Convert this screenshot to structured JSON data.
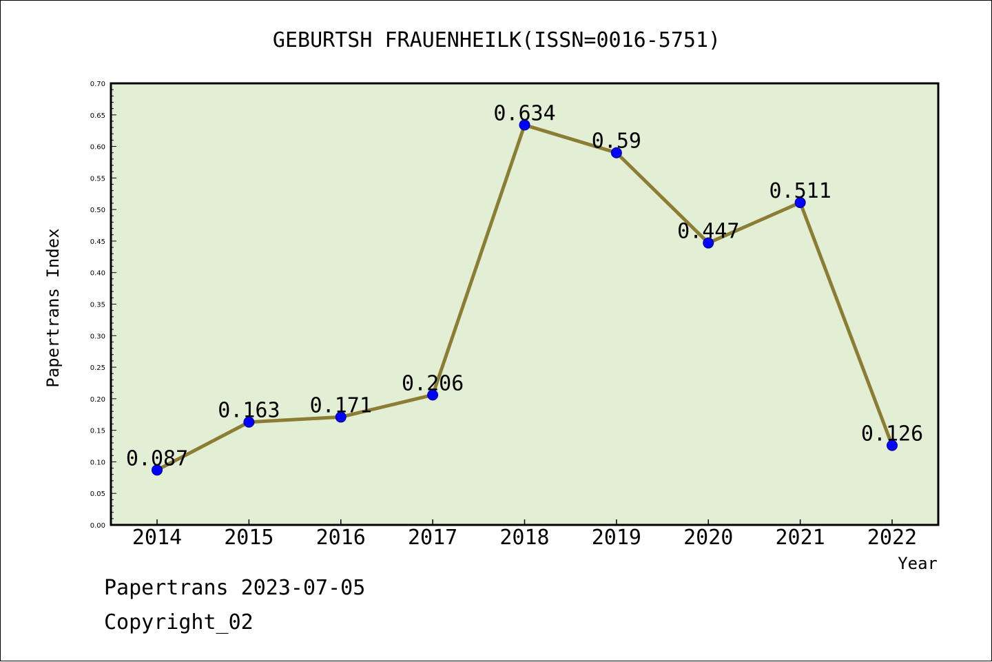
{
  "chart_data": {
    "type": "line",
    "title": "GEBURTSH FRAUENHEILK(ISSN=0016-5751)",
    "xlabel": "Year",
    "ylabel": "Papertrans Index",
    "categories": [
      "2014",
      "2015",
      "2016",
      "2017",
      "2018",
      "2019",
      "2020",
      "2021",
      "2022"
    ],
    "values": [
      0.087,
      0.163,
      0.171,
      0.206,
      0.634,
      0.59,
      0.447,
      0.511,
      0.126
    ],
    "data_labels": [
      "0.087",
      "0.163",
      "0.171",
      "0.206",
      "0.634",
      "0.59",
      "0.447",
      "0.511",
      "0.126"
    ],
    "ylim": [
      0,
      0.7
    ],
    "yticks": [
      "0.00",
      "0.05",
      "0.10",
      "0.15",
      "0.20",
      "0.25",
      "0.30",
      "0.35",
      "0.40",
      "0.45",
      "0.50",
      "0.55",
      "0.60",
      "0.65",
      "0.70"
    ],
    "grid": false,
    "colors": {
      "plot_background": "#e2efd5",
      "line": "#8c7d34",
      "marker": "#0000ff",
      "marker_edge": "#00008b"
    }
  },
  "footer": {
    "line1": "Papertrans 2023-07-05",
    "line2": "Copyright_02"
  }
}
